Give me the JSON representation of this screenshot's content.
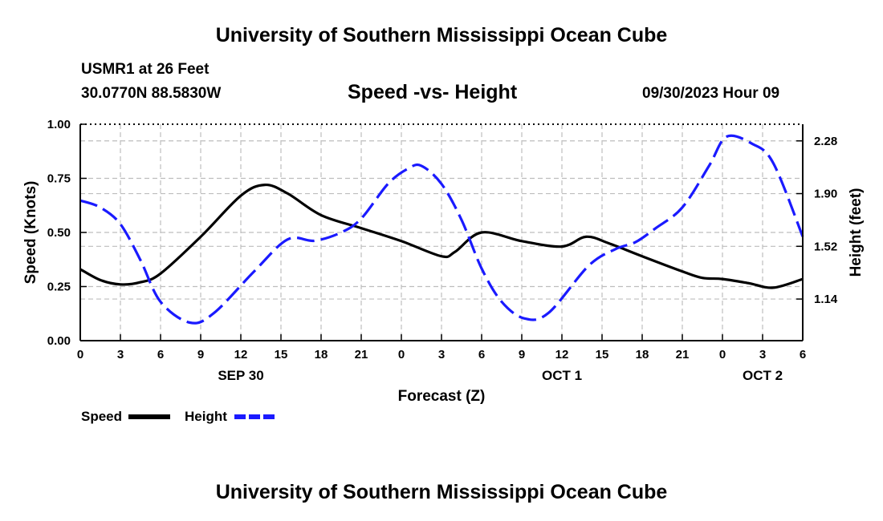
{
  "header": {
    "title": "University of Southern Mississippi Ocean Cube",
    "station": "USMR1 at 26 Feet",
    "coords": "30.0770N  88.5830W",
    "subtitle": "Speed -vs- Height",
    "datetime": "09/30/2023 Hour 09"
  },
  "footer": {
    "title": "University of Southern Mississippi Ocean Cube"
  },
  "chart_data": {
    "type": "line",
    "title": "Speed -vs- Height",
    "xlabel": "Forecast (Z)",
    "ylabel": "Speed (Knots)",
    "y2label": "Height (feet)",
    "xlim": [
      0,
      54
    ],
    "ylim": [
      0,
      1.0
    ],
    "y2lim": [
      0.84,
      2.4
    ],
    "grid": true,
    "x_ticks": [
      0,
      3,
      6,
      9,
      12,
      15,
      18,
      21,
      24,
      27,
      30,
      33,
      36,
      39,
      42,
      45,
      48,
      51,
      54
    ],
    "x_tick_labels": [
      "0",
      "3",
      "6",
      "9",
      "12",
      "15",
      "18",
      "21",
      "0",
      "3",
      "6",
      "9",
      "12",
      "15",
      "18",
      "21",
      "0",
      "3",
      "6"
    ],
    "date_labels": [
      {
        "x": 12,
        "label": "SEP 30"
      },
      {
        "x": 36,
        "label": "OCT 1"
      },
      {
        "x": 51,
        "label": "OCT 2"
      }
    ],
    "y_ticks": [
      0,
      0.25,
      0.5,
      0.75,
      1.0
    ],
    "y_tick_labels": [
      "0.00",
      "0.25",
      "0.50",
      "0.75",
      "1.00"
    ],
    "y2_ticks": [
      1.14,
      1.52,
      1.9,
      2.28
    ],
    "y2_tick_labels": [
      "1.14",
      "1.52",
      "1.90",
      "2.28"
    ],
    "series": [
      {
        "name": "Speed",
        "axis": "left",
        "color": "#000000",
        "style": "solid",
        "x": [
          0,
          1.5,
          3,
          4.5,
          6,
          9,
          12,
          13.8,
          15.5,
          18,
          21,
          24,
          27,
          28,
          30,
          33,
          36,
          37.8,
          39.5,
          42,
          45,
          46.5,
          48,
          50,
          51.8,
          54
        ],
        "values": [
          0.33,
          0.28,
          0.26,
          0.27,
          0.31,
          0.48,
          0.67,
          0.72,
          0.68,
          0.58,
          0.52,
          0.46,
          0.39,
          0.41,
          0.5,
          0.46,
          0.435,
          0.48,
          0.45,
          0.39,
          0.32,
          0.29,
          0.285,
          0.265,
          0.245,
          0.285
        ]
      },
      {
        "name": "Height",
        "axis": "right",
        "color": "#1a1aff",
        "style": "dashed",
        "x": [
          0,
          1.5,
          3,
          4.5,
          6,
          8.2,
          10,
          13,
          15.5,
          17.5,
          19.5,
          21,
          23,
          24.5,
          25.5,
          27,
          28.5,
          30,
          31.5,
          33.2,
          35,
          38,
          40,
          41.5,
          43,
          45,
          47,
          48.3,
          50.2,
          51.8,
          54
        ],
        "values": [
          1.85,
          1.8,
          1.68,
          1.42,
          1.12,
          0.97,
          1.04,
          1.34,
          1.57,
          1.56,
          1.62,
          1.72,
          1.97,
          2.08,
          2.1,
          1.97,
          1.71,
          1.36,
          1.12,
          1.0,
          1.04,
          1.38,
          1.5,
          1.55,
          1.65,
          1.8,
          2.1,
          2.31,
          2.26,
          2.12,
          1.59
        ]
      }
    ]
  },
  "legend": [
    {
      "label": "Speed",
      "color": "#000000",
      "style": "solid"
    },
    {
      "label": "Height",
      "color": "#1a1aff",
      "style": "dashed"
    }
  ]
}
